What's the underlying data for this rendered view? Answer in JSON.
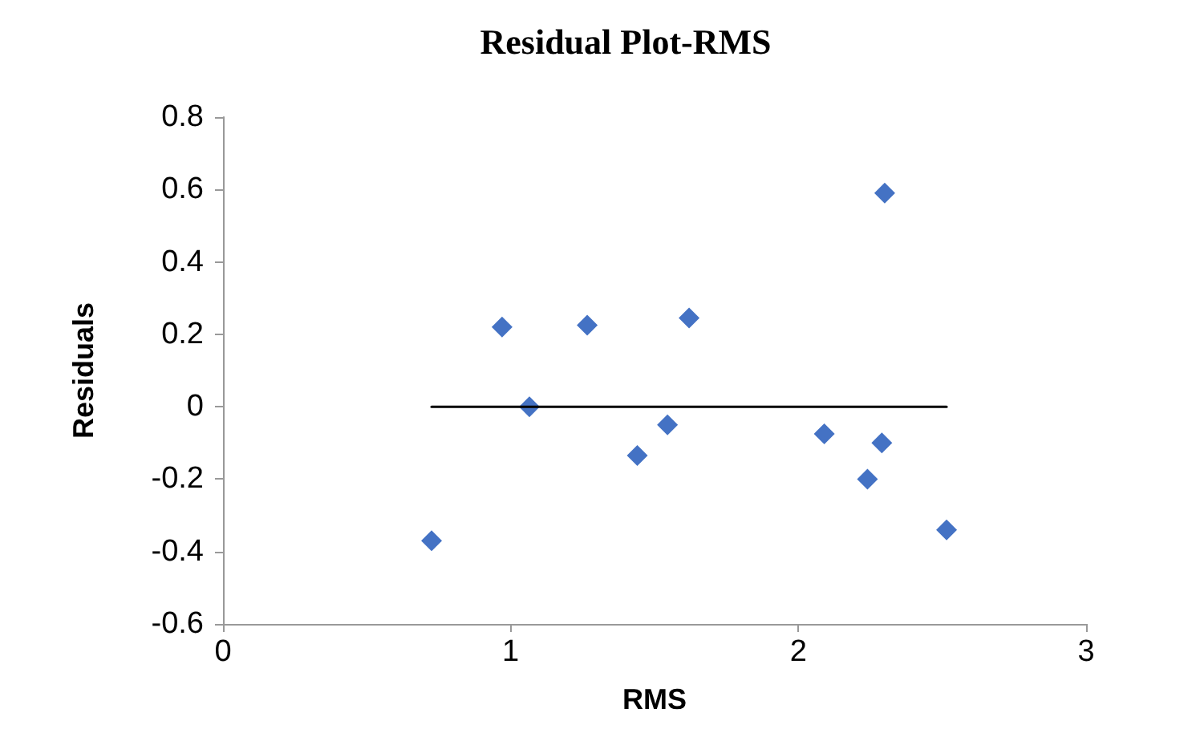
{
  "chart_data": {
    "type": "scatter",
    "title": "Residual Plot-RMS",
    "xlabel": "RMS",
    "ylabel": "Residuals",
    "xlim": [
      0,
      3
    ],
    "xticks": [
      0,
      1,
      2,
      3
    ],
    "ylim": [
      -0.6,
      0.8
    ],
    "yticks": [
      -0.6,
      -0.4,
      -0.2,
      0,
      0.2,
      0.4,
      0.6,
      0.8
    ],
    "marker": "diamond",
    "grid": false,
    "series": [
      {
        "color": "#4472c4",
        "x": [
          0.725,
          0.97,
          1.065,
          1.266,
          1.44,
          1.545,
          1.62,
          2.09,
          2.24,
          2.29,
          2.3,
          2.515
        ],
        "values": [
          -0.37,
          0.22,
          0.0,
          0.225,
          -0.135,
          -0.05,
          0.245,
          -0.075,
          -0.2,
          -0.1,
          0.59,
          -0.34
        ]
      },
      {
        "type": "line",
        "color": "#000000",
        "marker": "none",
        "x": [
          0.725,
          2.515
        ],
        "values": [
          0,
          0
        ]
      }
    ]
  }
}
